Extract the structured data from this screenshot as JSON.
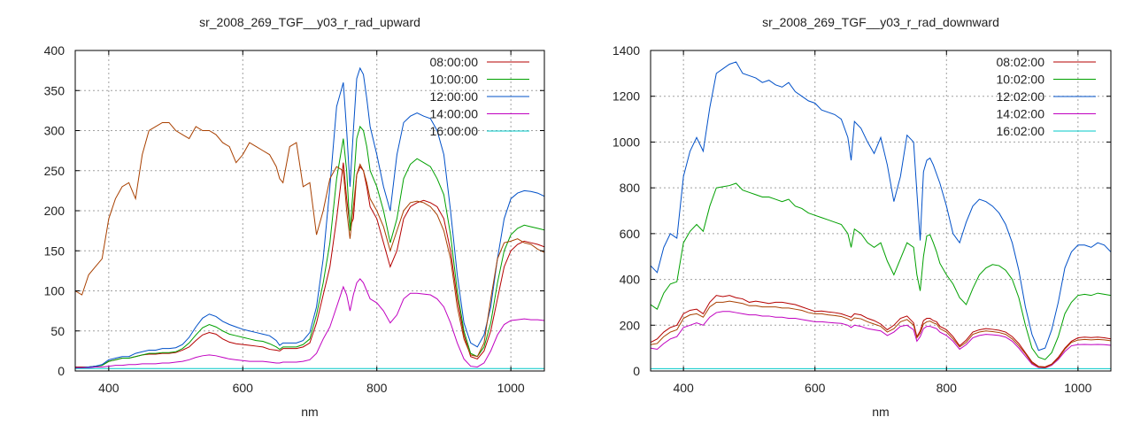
{
  "chart_data": [
    {
      "type": "line",
      "title": "sr_2008_269_TGF__y03_r_rad_upward",
      "xlabel": "nm",
      "ylabel": "",
      "xlim": [
        350,
        1050
      ],
      "ylim": [
        0,
        400
      ],
      "xticks": [
        400,
        600,
        800,
        1000
      ],
      "yticks": [
        0,
        50,
        100,
        150,
        200,
        250,
        300,
        350,
        400
      ],
      "grid": true,
      "legend_position": "top-right",
      "x": [
        350,
        360,
        370,
        380,
        390,
        400,
        410,
        420,
        430,
        440,
        450,
        460,
        470,
        480,
        490,
        500,
        510,
        520,
        530,
        540,
        550,
        560,
        570,
        580,
        590,
        600,
        610,
        620,
        630,
        640,
        650,
        655,
        660,
        670,
        680,
        690,
        700,
        710,
        720,
        730,
        740,
        750,
        755,
        760,
        765,
        770,
        775,
        780,
        785,
        790,
        800,
        810,
        820,
        830,
        840,
        850,
        860,
        870,
        880,
        890,
        900,
        910,
        920,
        930,
        940,
        950,
        960,
        970,
        980,
        990,
        1000,
        1010,
        1020,
        1030,
        1040,
        1050
      ],
      "series": [
        {
          "name": "08:00:00",
          "color": "#b50000",
          "values": [
            5,
            5,
            5,
            6,
            7,
            12,
            14,
            16,
            16,
            18,
            20,
            21,
            21,
            22,
            22,
            23,
            26,
            30,
            38,
            45,
            48,
            46,
            40,
            36,
            34,
            33,
            32,
            31,
            30,
            27,
            26,
            25,
            28,
            28,
            28,
            30,
            35,
            60,
            95,
            130,
            190,
            260,
            215,
            180,
            190,
            245,
            255,
            250,
            230,
            205,
            190,
            160,
            130,
            150,
            190,
            205,
            210,
            213,
            210,
            205,
            190,
            150,
            90,
            45,
            18,
            15,
            25,
            50,
            90,
            130,
            150,
            158,
            162,
            160,
            158,
            155
          ]
        },
        {
          "name": "10:00:00",
          "color": "#00a000",
          "values": [
            4,
            4,
            5,
            6,
            7,
            12,
            14,
            16,
            16,
            18,
            20,
            22,
            22,
            23,
            23,
            24,
            28,
            35,
            45,
            54,
            58,
            55,
            50,
            46,
            44,
            42,
            40,
            38,
            37,
            34,
            30,
            27,
            30,
            30,
            30,
            33,
            40,
            70,
            110,
            160,
            240,
            290,
            250,
            175,
            230,
            290,
            305,
            300,
            280,
            250,
            230,
            200,
            160,
            190,
            240,
            258,
            265,
            260,
            255,
            240,
            220,
            170,
            100,
            50,
            22,
            18,
            30,
            60,
            110,
            150,
            170,
            178,
            182,
            180,
            178,
            176
          ]
        },
        {
          "name": "12:00:00",
          "color": "#0050c8",
          "values": [
            4,
            4,
            5,
            6,
            8,
            14,
            16,
            18,
            18,
            22,
            24,
            26,
            26,
            28,
            28,
            29,
            33,
            42,
            55,
            66,
            71,
            68,
            62,
            58,
            55,
            52,
            50,
            48,
            46,
            44,
            38,
            32,
            35,
            35,
            35,
            38,
            48,
            80,
            140,
            230,
            330,
            360,
            300,
            230,
            300,
            365,
            378,
            370,
            340,
            305,
            270,
            230,
            200,
            270,
            310,
            318,
            322,
            318,
            315,
            300,
            270,
            200,
            120,
            60,
            35,
            30,
            45,
            80,
            140,
            190,
            215,
            222,
            225,
            224,
            222,
            218
          ]
        },
        {
          "name": "14:00:00",
          "color": "#c000c0",
          "values": [
            4,
            4,
            4,
            5,
            5,
            6,
            7,
            7,
            8,
            8,
            9,
            9,
            9,
            10,
            10,
            11,
            12,
            14,
            17,
            19,
            20,
            19,
            17,
            15,
            14,
            13,
            12,
            12,
            12,
            11,
            10,
            10,
            11,
            11,
            11,
            12,
            14,
            22,
            40,
            55,
            80,
            105,
            95,
            75,
            95,
            110,
            115,
            110,
            100,
            90,
            85,
            75,
            60,
            70,
            90,
            97,
            97,
            96,
            95,
            90,
            80,
            60,
            35,
            15,
            6,
            5,
            10,
            25,
            45,
            58,
            63,
            64,
            65,
            64,
            64,
            63
          ]
        },
        {
          "name": "16:00:00",
          "color": "#00c8c8",
          "values": [
            3,
            3,
            3,
            3,
            3,
            3,
            3,
            3,
            3,
            3,
            3,
            3,
            3,
            3,
            3,
            3,
            3,
            3,
            3,
            3,
            3,
            3,
            3,
            3,
            3,
            3,
            3,
            3,
            3,
            3,
            3,
            3,
            3,
            3,
            3,
            3,
            3,
            3,
            3,
            3,
            3,
            3,
            3,
            3,
            3,
            3,
            3,
            3,
            3,
            3,
            3,
            3,
            3,
            3,
            3,
            3,
            3,
            3,
            3,
            3,
            3,
            3,
            3,
            3,
            3,
            3,
            3,
            3,
            3,
            3,
            3,
            3,
            3,
            3,
            3,
            3
          ]
        },
        {
          "name": "",
          "color": "#a84000",
          "values": [
            100,
            95,
            120,
            130,
            140,
            190,
            215,
            230,
            235,
            215,
            270,
            300,
            305,
            310,
            310,
            300,
            295,
            290,
            305,
            300,
            300,
            295,
            285,
            280,
            260,
            270,
            285,
            280,
            275,
            270,
            255,
            240,
            235,
            280,
            285,
            230,
            235,
            170,
            200,
            240,
            255,
            250,
            200,
            165,
            205,
            245,
            258,
            250,
            235,
            215,
            200,
            180,
            150,
            175,
            200,
            210,
            212,
            210,
            205,
            195,
            175,
            140,
            80,
            40,
            20,
            18,
            35,
            90,
            140,
            160,
            162,
            165,
            160,
            158,
            152,
            148
          ]
        }
      ]
    },
    {
      "type": "line",
      "title": "sr_2008_269_TGF__y03_r_rad_downward",
      "xlabel": "nm",
      "ylabel": "",
      "xlim": [
        350,
        1050
      ],
      "ylim": [
        0,
        1400
      ],
      "xticks": [
        400,
        600,
        800,
        1000
      ],
      "yticks": [
        0,
        200,
        400,
        600,
        800,
        1000,
        1200,
        1400
      ],
      "grid": true,
      "legend_position": "top-right",
      "x": [
        350,
        360,
        370,
        380,
        390,
        400,
        410,
        420,
        430,
        440,
        450,
        460,
        470,
        480,
        490,
        500,
        510,
        520,
        530,
        540,
        550,
        560,
        570,
        580,
        590,
        600,
        610,
        620,
        630,
        640,
        650,
        655,
        660,
        670,
        680,
        690,
        700,
        710,
        720,
        730,
        740,
        750,
        755,
        760,
        765,
        770,
        775,
        780,
        785,
        790,
        800,
        810,
        820,
        830,
        840,
        850,
        860,
        870,
        880,
        890,
        900,
        910,
        920,
        930,
        940,
        950,
        960,
        970,
        980,
        990,
        1000,
        1010,
        1020,
        1030,
        1040,
        1050
      ],
      "series": [
        {
          "name": "08:02:00",
          "color": "#b50000",
          "values": [
            125,
            140,
            170,
            190,
            200,
            250,
            265,
            270,
            250,
            300,
            330,
            325,
            330,
            320,
            315,
            300,
            305,
            300,
            295,
            300,
            300,
            295,
            290,
            280,
            270,
            260,
            262,
            258,
            255,
            250,
            240,
            235,
            250,
            245,
            230,
            220,
            205,
            180,
            200,
            230,
            240,
            210,
            150,
            175,
            220,
            230,
            230,
            220,
            215,
            195,
            180,
            150,
            110,
            135,
            170,
            180,
            185,
            182,
            178,
            170,
            150,
            120,
            80,
            40,
            20,
            18,
            30,
            60,
            100,
            130,
            145,
            148,
            146,
            148,
            145,
            140
          ]
        },
        {
          "name": "10:02:00",
          "color": "#00a000",
          "values": [
            290,
            270,
            340,
            380,
            390,
            560,
            610,
            640,
            610,
            720,
            800,
            805,
            810,
            820,
            790,
            780,
            770,
            760,
            760,
            750,
            740,
            750,
            720,
            710,
            690,
            680,
            670,
            660,
            650,
            640,
            600,
            540,
            620,
            600,
            560,
            540,
            560,
            480,
            420,
            490,
            560,
            540,
            420,
            350,
            500,
            590,
            595,
            560,
            520,
            470,
            420,
            380,
            320,
            290,
            360,
            420,
            450,
            465,
            460,
            440,
            400,
            320,
            200,
            100,
            60,
            50,
            80,
            150,
            250,
            300,
            330,
            335,
            330,
            340,
            335,
            330
          ]
        },
        {
          "name": "12:02:00",
          "color": "#0050c8",
          "values": [
            460,
            430,
            540,
            600,
            580,
            850,
            960,
            1020,
            960,
            1150,
            1300,
            1320,
            1340,
            1350,
            1300,
            1290,
            1280,
            1260,
            1270,
            1250,
            1240,
            1260,
            1220,
            1200,
            1180,
            1170,
            1140,
            1130,
            1120,
            1100,
            1020,
            920,
            1090,
            1060,
            1000,
            950,
            1020,
            900,
            740,
            850,
            1030,
            1000,
            780,
            570,
            870,
            920,
            930,
            900,
            860,
            820,
            720,
            600,
            560,
            650,
            720,
            750,
            740,
            720,
            690,
            640,
            560,
            440,
            280,
            160,
            90,
            100,
            180,
            300,
            450,
            520,
            550,
            550,
            540,
            560,
            550,
            520
          ]
        },
        {
          "name": "14:02:00",
          "color": "#c000c0",
          "values": [
            100,
            95,
            120,
            140,
            150,
            190,
            200,
            210,
            200,
            235,
            255,
            260,
            260,
            255,
            250,
            245,
            245,
            240,
            240,
            235,
            235,
            230,
            230,
            225,
            220,
            215,
            215,
            212,
            210,
            208,
            200,
            190,
            200,
            195,
            185,
            180,
            175,
            155,
            170,
            195,
            200,
            180,
            130,
            150,
            185,
            195,
            195,
            190,
            185,
            170,
            155,
            130,
            95,
            115,
            145,
            155,
            160,
            158,
            155,
            148,
            130,
            100,
            65,
            30,
            15,
            13,
            25,
            50,
            85,
            110,
            115,
            116,
            115,
            116,
            115,
            112
          ]
        },
        {
          "name": "16:02:00",
          "color": "#00c8c8",
          "values": [
            10,
            10,
            10,
            10,
            10,
            10,
            10,
            10,
            10,
            10,
            10,
            10,
            10,
            10,
            10,
            10,
            10,
            10,
            10,
            10,
            10,
            10,
            10,
            10,
            10,
            10,
            10,
            10,
            10,
            10,
            10,
            10,
            10,
            10,
            10,
            10,
            10,
            10,
            10,
            10,
            10,
            10,
            10,
            10,
            10,
            10,
            10,
            10,
            10,
            10,
            10,
            10,
            10,
            10,
            10,
            10,
            10,
            10,
            10,
            10,
            10,
            10,
            10,
            10,
            10,
            10,
            10,
            10,
            10,
            10,
            10,
            10,
            10,
            10,
            10,
            10
          ]
        },
        {
          "name": "",
          "color": "#a84000",
          "values": [
            115,
            120,
            150,
            170,
            180,
            230,
            245,
            250,
            235,
            280,
            300,
            300,
            305,
            300,
            295,
            285,
            285,
            280,
            280,
            280,
            275,
            275,
            270,
            265,
            255,
            250,
            250,
            245,
            242,
            238,
            228,
            220,
            232,
            228,
            215,
            205,
            195,
            170,
            185,
            215,
            225,
            200,
            145,
            165,
            205,
            215,
            218,
            210,
            205,
            185,
            170,
            140,
            105,
            125,
            160,
            170,
            175,
            172,
            168,
            160,
            140,
            110,
            75,
            35,
            18,
            15,
            28,
            55,
            95,
            125,
            135,
            138,
            136,
            138,
            136,
            132
          ]
        }
      ]
    }
  ]
}
